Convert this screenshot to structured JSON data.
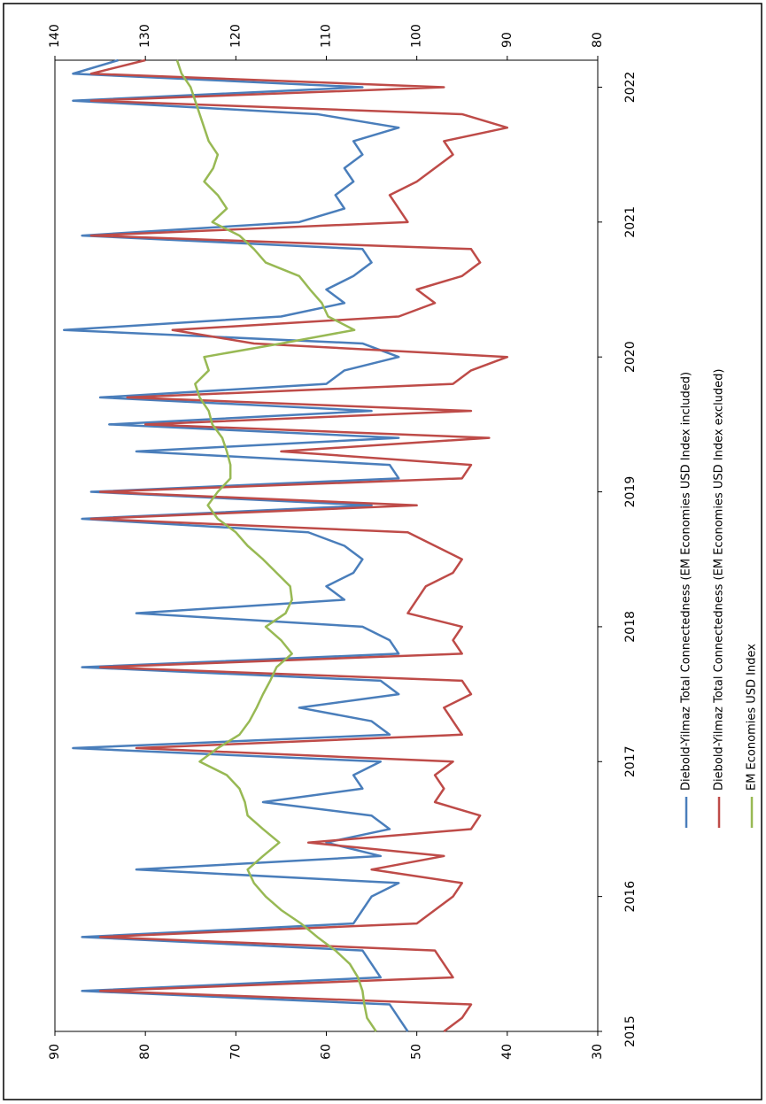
{
  "chart_data": {
    "type": "line",
    "x": [
      2015.0,
      2015.1,
      2015.2,
      2015.3,
      2015.4,
      2015.5,
      2015.6,
      2015.7,
      2015.8,
      2015.9,
      2016.0,
      2016.1,
      2016.2,
      2016.3,
      2016.4,
      2016.5,
      2016.6,
      2016.7,
      2016.8,
      2016.9,
      2017.0,
      2017.1,
      2017.2,
      2017.3,
      2017.4,
      2017.5,
      2017.6,
      2017.7,
      2017.8,
      2017.9,
      2018.0,
      2018.1,
      2018.2,
      2018.3,
      2018.4,
      2018.5,
      2018.6,
      2018.7,
      2018.8,
      2018.9,
      2019.0,
      2019.1,
      2019.2,
      2019.3,
      2019.4,
      2019.5,
      2019.6,
      2019.7,
      2019.8,
      2019.9,
      2020.0,
      2020.1,
      2020.2,
      2020.3,
      2020.4,
      2020.5,
      2020.6,
      2020.7,
      2020.8,
      2020.9,
      2021.0,
      2021.1,
      2021.2,
      2021.3,
      2021.4,
      2021.5,
      2021.6,
      2021.7,
      2021.8,
      2021.9,
      2022.0,
      2022.1,
      2022.2
    ],
    "xlim": [
      2015,
      2022.2
    ],
    "xticks": [
      2015,
      2016,
      2017,
      2018,
      2019,
      2020,
      2021,
      2022
    ],
    "ylim": [
      30,
      90
    ],
    "yticks": [
      30,
      40,
      50,
      60,
      70,
      80,
      90
    ],
    "y2lim": [
      80,
      140
    ],
    "y2ticks": [
      80,
      90,
      100,
      110,
      120,
      130,
      140
    ],
    "grid": false,
    "legend": "bottom",
    "series": [
      {
        "name": "Diebold-Yilmaz Total Connectedness (EM Economies USD Index included)",
        "color": "#4a7ebb",
        "values": [
          51,
          52,
          53,
          87,
          54,
          55,
          56,
          87,
          57,
          56,
          55,
          52,
          81,
          54,
          60,
          53,
          55,
          67,
          56,
          57,
          54,
          88,
          53,
          55,
          63,
          52,
          54,
          87,
          52,
          53,
          56,
          81,
          58,
          60,
          57,
          56,
          58,
          62,
          87,
          55,
          86,
          52,
          53,
          81,
          52,
          84,
          55,
          85,
          60,
          58,
          52,
          56,
          89,
          65,
          58,
          60,
          57,
          55,
          56,
          87,
          63,
          58,
          59,
          57,
          58,
          56,
          57,
          52,
          61,
          88,
          56,
          88,
          83
        ]
      },
      {
        "name": "Diebold-Yilmaz Total Connectedness (EM Economies USD Index excluded)",
        "color": "#be4b48",
        "values": [
          47,
          45,
          44,
          85,
          46,
          47,
          48,
          85,
          50,
          48,
          46,
          45,
          55,
          47,
          62,
          44,
          43,
          48,
          47,
          48,
          46,
          81,
          45,
          46,
          47,
          44,
          45,
          85,
          45,
          46,
          45,
          51,
          50,
          49,
          46,
          45,
          48,
          51,
          86,
          50,
          85,
          45,
          44,
          65,
          42,
          80,
          44,
          82,
          46,
          44,
          40,
          68,
          77,
          52,
          48,
          50,
          45,
          43,
          44,
          86,
          51,
          52,
          53,
          50,
          48,
          46,
          47,
          40,
          45,
          86,
          47,
          86,
          80
        ]
      },
      {
        "name": "EM Economies USD Index",
        "color": "#98b954",
        "axis": "y2",
        "values": [
          104.5,
          105.5,
          105.8,
          106,
          106.5,
          107.4,
          109,
          111,
          112.8,
          115,
          116.7,
          118,
          118.7,
          117,
          115.2,
          117,
          118.7,
          119,
          119.6,
          121,
          124,
          122,
          119.6,
          118.5,
          117.7,
          117,
          116.2,
          115.5,
          113.8,
          115,
          116.7,
          114.5,
          113.8,
          114,
          115.5,
          117,
          118.7,
          120,
          122,
          123.1,
          122,
          120.6,
          120.6,
          121,
          121.5,
          122.6,
          123,
          124,
          124.5,
          123,
          123.5,
          115,
          106.9,
          109.8,
          110.5,
          111.8,
          113,
          116.7,
          118,
          119.6,
          122.6,
          121,
          122,
          123.5,
          122.5,
          122,
          123,
          123.5,
          124,
          124.5,
          125,
          126,
          126.5
        ]
      }
    ]
  }
}
